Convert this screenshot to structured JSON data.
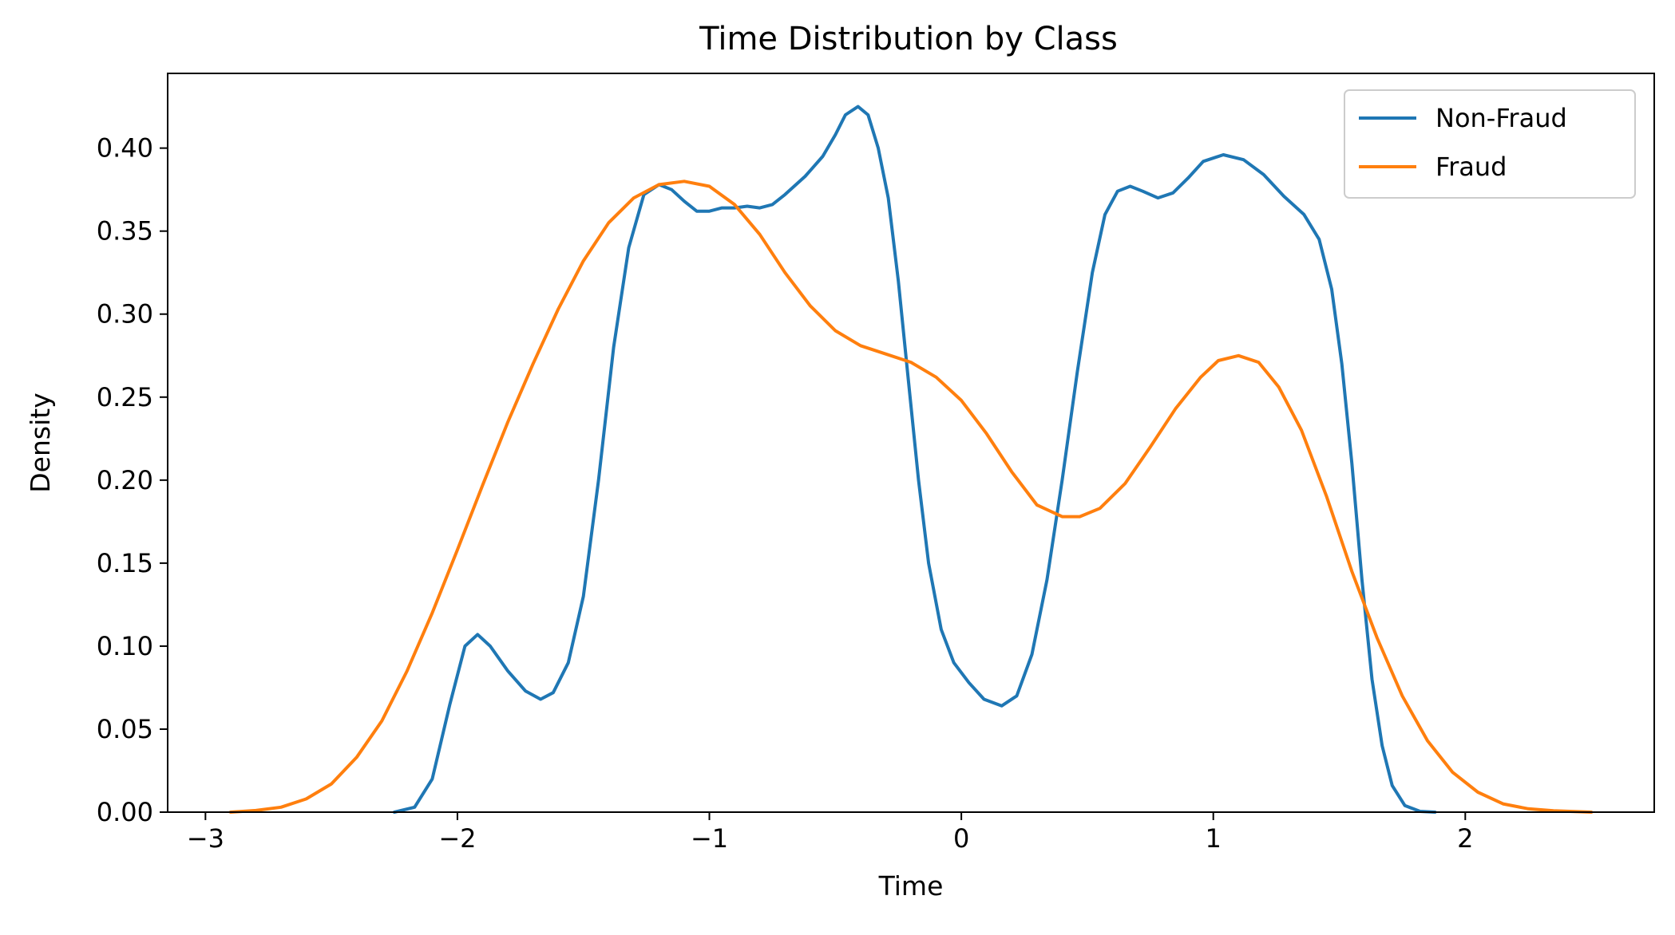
{
  "chart_data": {
    "type": "line",
    "title": "Time Distribution by Class",
    "xlabel": "Time",
    "ylabel": "Density",
    "xlim": [
      -3.15,
      2.75
    ],
    "ylim": [
      0,
      0.445
    ],
    "x_ticks": [
      -3,
      -2,
      -1,
      0,
      1,
      2
    ],
    "x_tick_labels": [
      "−3",
      "−2",
      "−1",
      "0",
      "1",
      "2"
    ],
    "y_ticks": [
      0.0,
      0.05,
      0.1,
      0.15,
      0.2,
      0.25,
      0.3,
      0.35,
      0.4
    ],
    "y_tick_labels": [
      "0.00",
      "0.05",
      "0.10",
      "0.15",
      "0.20",
      "0.25",
      "0.30",
      "0.35",
      "0.40"
    ],
    "grid": false,
    "legend_position": "top-right",
    "series": [
      {
        "name": "Non-Fraud",
        "color": "#1f77b4",
        "points": [
          [
            -2.25,
            0.0
          ],
          [
            -2.17,
            0.003
          ],
          [
            -2.1,
            0.02
          ],
          [
            -2.03,
            0.065
          ],
          [
            -1.97,
            0.1
          ],
          [
            -1.92,
            0.107
          ],
          [
            -1.87,
            0.1
          ],
          [
            -1.8,
            0.085
          ],
          [
            -1.73,
            0.073
          ],
          [
            -1.67,
            0.068
          ],
          [
            -1.62,
            0.072
          ],
          [
            -1.56,
            0.09
          ],
          [
            -1.5,
            0.13
          ],
          [
            -1.44,
            0.2
          ],
          [
            -1.38,
            0.28
          ],
          [
            -1.32,
            0.34
          ],
          [
            -1.26,
            0.372
          ],
          [
            -1.2,
            0.378
          ],
          [
            -1.15,
            0.375
          ],
          [
            -1.1,
            0.368
          ],
          [
            -1.05,
            0.362
          ],
          [
            -1.0,
            0.362
          ],
          [
            -0.95,
            0.364
          ],
          [
            -0.9,
            0.364
          ],
          [
            -0.85,
            0.365
          ],
          [
            -0.8,
            0.364
          ],
          [
            -0.75,
            0.366
          ],
          [
            -0.7,
            0.372
          ],
          [
            -0.62,
            0.383
          ],
          [
            -0.55,
            0.395
          ],
          [
            -0.5,
            0.408
          ],
          [
            -0.46,
            0.42
          ],
          [
            -0.41,
            0.425
          ],
          [
            -0.37,
            0.42
          ],
          [
            -0.33,
            0.4
          ],
          [
            -0.29,
            0.37
          ],
          [
            -0.25,
            0.32
          ],
          [
            -0.21,
            0.26
          ],
          [
            -0.17,
            0.2
          ],
          [
            -0.13,
            0.15
          ],
          [
            -0.08,
            0.11
          ],
          [
            -0.03,
            0.09
          ],
          [
            0.03,
            0.078
          ],
          [
            0.09,
            0.068
          ],
          [
            0.16,
            0.064
          ],
          [
            0.22,
            0.07
          ],
          [
            0.28,
            0.095
          ],
          [
            0.34,
            0.14
          ],
          [
            0.4,
            0.2
          ],
          [
            0.46,
            0.265
          ],
          [
            0.52,
            0.325
          ],
          [
            0.57,
            0.36
          ],
          [
            0.62,
            0.374
          ],
          [
            0.67,
            0.377
          ],
          [
            0.72,
            0.374
          ],
          [
            0.78,
            0.37
          ],
          [
            0.84,
            0.373
          ],
          [
            0.9,
            0.382
          ],
          [
            0.96,
            0.392
          ],
          [
            1.04,
            0.396
          ],
          [
            1.12,
            0.393
          ],
          [
            1.2,
            0.384
          ],
          [
            1.28,
            0.371
          ],
          [
            1.36,
            0.36
          ],
          [
            1.42,
            0.345
          ],
          [
            1.47,
            0.315
          ],
          [
            1.51,
            0.27
          ],
          [
            1.55,
            0.21
          ],
          [
            1.59,
            0.14
          ],
          [
            1.63,
            0.08
          ],
          [
            1.67,
            0.04
          ],
          [
            1.71,
            0.016
          ],
          [
            1.76,
            0.004
          ],
          [
            1.82,
            0.0005
          ],
          [
            1.88,
            0.0
          ]
        ]
      },
      {
        "name": "Fraud",
        "color": "#ff7f0e",
        "points": [
          [
            -2.9,
            0.0
          ],
          [
            -2.8,
            0.001
          ],
          [
            -2.7,
            0.003
          ],
          [
            -2.6,
            0.008
          ],
          [
            -2.5,
            0.017
          ],
          [
            -2.4,
            0.033
          ],
          [
            -2.3,
            0.055
          ],
          [
            -2.2,
            0.085
          ],
          [
            -2.1,
            0.12
          ],
          [
            -2.0,
            0.158
          ],
          [
            -1.9,
            0.197
          ],
          [
            -1.8,
            0.235
          ],
          [
            -1.7,
            0.27
          ],
          [
            -1.6,
            0.303
          ],
          [
            -1.5,
            0.332
          ],
          [
            -1.4,
            0.355
          ],
          [
            -1.3,
            0.37
          ],
          [
            -1.2,
            0.378
          ],
          [
            -1.1,
            0.38
          ],
          [
            -1.0,
            0.377
          ],
          [
            -0.9,
            0.366
          ],
          [
            -0.8,
            0.348
          ],
          [
            -0.7,
            0.325
          ],
          [
            -0.6,
            0.305
          ],
          [
            -0.5,
            0.29
          ],
          [
            -0.4,
            0.281
          ],
          [
            -0.3,
            0.276
          ],
          [
            -0.2,
            0.271
          ],
          [
            -0.1,
            0.262
          ],
          [
            0.0,
            0.248
          ],
          [
            0.1,
            0.228
          ],
          [
            0.2,
            0.205
          ],
          [
            0.3,
            0.185
          ],
          [
            0.4,
            0.178
          ],
          [
            0.47,
            0.178
          ],
          [
            0.55,
            0.183
          ],
          [
            0.65,
            0.198
          ],
          [
            0.75,
            0.22
          ],
          [
            0.85,
            0.243
          ],
          [
            0.95,
            0.262
          ],
          [
            1.02,
            0.272
          ],
          [
            1.1,
            0.275
          ],
          [
            1.18,
            0.271
          ],
          [
            1.26,
            0.256
          ],
          [
            1.35,
            0.23
          ],
          [
            1.45,
            0.19
          ],
          [
            1.55,
            0.145
          ],
          [
            1.65,
            0.105
          ],
          [
            1.75,
            0.07
          ],
          [
            1.85,
            0.043
          ],
          [
            1.95,
            0.024
          ],
          [
            2.05,
            0.012
          ],
          [
            2.15,
            0.005
          ],
          [
            2.25,
            0.002
          ],
          [
            2.35,
            0.0008
          ],
          [
            2.5,
            0.0
          ]
        ]
      }
    ]
  }
}
